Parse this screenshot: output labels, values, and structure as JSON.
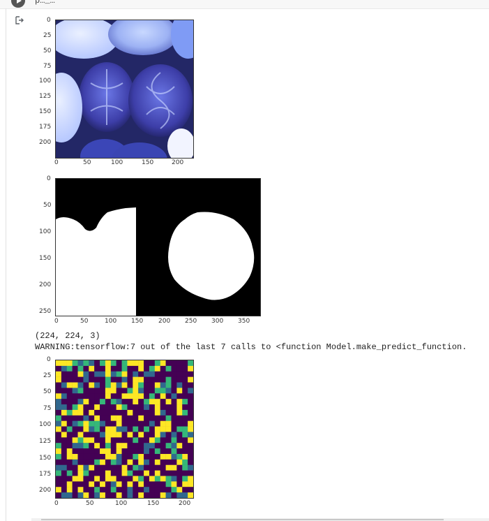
{
  "cell": {
    "run_button_icon": "play-icon",
    "code_fragment": "p…_…",
    "output_icon": "output-redirect-icon"
  },
  "outputs": {
    "image1": {
      "x_ticks": [
        "0",
        "50",
        "100",
        "150",
        "200"
      ],
      "y_ticks": [
        "0",
        "25",
        "50",
        "75",
        "100",
        "125",
        "150",
        "175",
        "200"
      ],
      "description": "mooncake photo"
    },
    "image2": {
      "x_ticks": [
        "0",
        "50",
        "100",
        "150",
        "200",
        "250",
        "300",
        "350"
      ],
      "y_ticks": [
        "0",
        "50",
        "100",
        "150",
        "200",
        "250"
      ],
      "description": "binary mask"
    },
    "text_lines": [
      "(224, 224, 3)",
      "WARNING:tensorflow:7 out of the last 7 calls to <function Model.make_predict_function."
    ],
    "image3": {
      "x_ticks": [
        "0",
        "50",
        "100",
        "150",
        "200"
      ],
      "y_ticks": [
        "0",
        "25",
        "50",
        "75",
        "100",
        "125",
        "150",
        "175",
        "200"
      ],
      "description": "heatmap prediction"
    }
  },
  "colors": {
    "heat_low": "#440154",
    "heat_mid1": "#31688e",
    "heat_mid2": "#35b779",
    "heat_high": "#fde725",
    "mask_white": "#ffffff",
    "mask_black": "#000000"
  }
}
